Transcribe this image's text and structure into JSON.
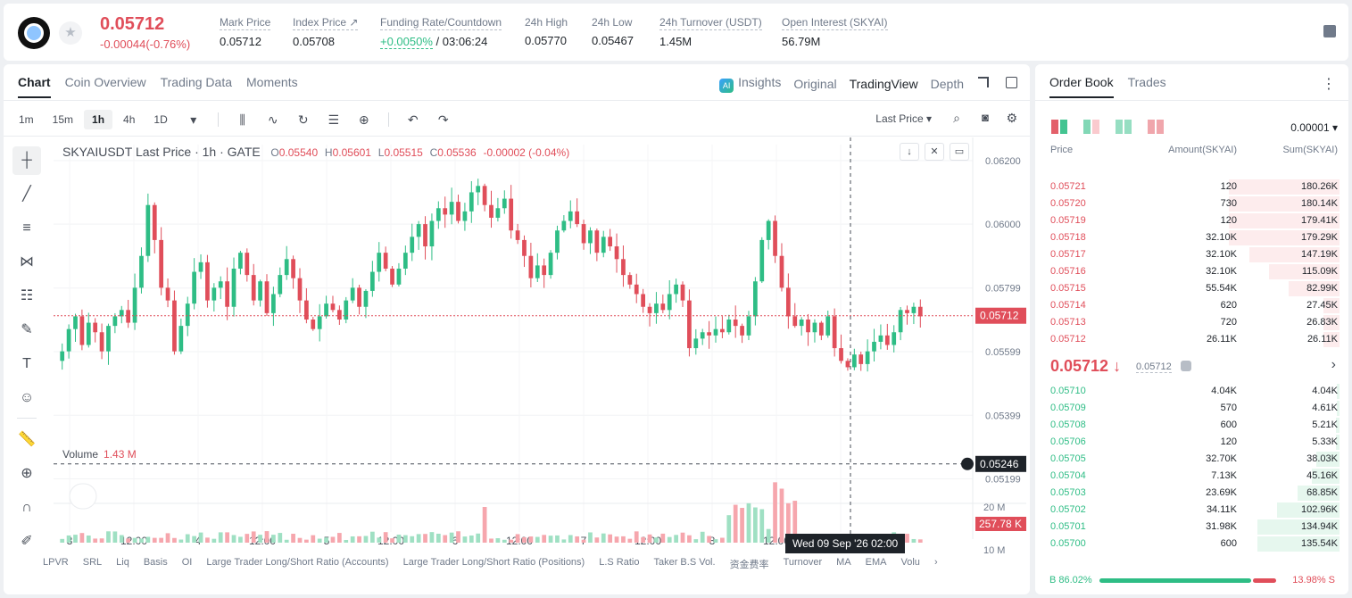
{
  "header": {
    "last_price": "0.05712",
    "change": "-0.00044(-0.76%)",
    "stats": [
      {
        "label": "Mark Price",
        "value": "0.05712"
      },
      {
        "label": "Index Price ↗",
        "value": "0.05708"
      },
      {
        "label": "Funding Rate/Countdown",
        "value_green": "+0.0050%",
        "value": " / 03:06:24"
      },
      {
        "label": "24h High",
        "value": "0.05770"
      },
      {
        "label": "24h Low",
        "value": "0.05467"
      },
      {
        "label": "24h Turnover (USDT)",
        "value": "1.45M"
      },
      {
        "label": "Open Interest (SKYAI)",
        "value": "56.79M"
      }
    ]
  },
  "chart_tabs": {
    "items": [
      "Chart",
      "Coin Overview",
      "Trading Data",
      "Moments"
    ],
    "active": "Chart"
  },
  "view_tabs": {
    "insights": "Insights",
    "original": "Original",
    "tradingview": "TradingView",
    "depth": "Depth",
    "ai_badge": "AI"
  },
  "timeframes": [
    "1m",
    "15m",
    "1h",
    "4h",
    "1D"
  ],
  "active_timeframe": "1h",
  "last_price_select": "Last Price",
  "legend": {
    "symbol": "SKYAIUSDT Last Price · 1h · GATE",
    "o_label": "O",
    "o": "0.05540",
    "h_label": "H",
    "h": "0.05601",
    "l_label": "L",
    "l": "0.05515",
    "c_label": "C",
    "c": "0.05536",
    "chg": "-0.00002 (-0.04%)"
  },
  "volume_legend": {
    "label": "Volume",
    "value": "1.43 M"
  },
  "crosshair_time": "Wed 09 Sep '26   02:00",
  "indicators": [
    "LPVR",
    "SRL",
    "Liq",
    "Basis",
    "OI",
    "Large Trader Long/Short Ratio (Accounts)",
    "Large Trader Long/Short Ratio (Positions)",
    "L.S Ratio",
    "Taker B.S Vol.",
    "资金费率",
    "Turnover",
    "MA",
    "EMA",
    "Volu"
  ],
  "chart_data": {
    "type": "candlestick",
    "y_ticks": [
      "0.06200",
      "0.06000",
      "0.05799",
      "0.05599",
      "0.05399",
      "0.05199"
    ],
    "vol_ticks": [
      "20 M",
      "10 M"
    ],
    "x_ticks": [
      "3",
      "12:00",
      "4",
      "12:00",
      "5",
      "12:00",
      "6",
      "12:00",
      "7",
      "12:00",
      "8",
      "12:00",
      "10"
    ],
    "ylim": [
      0.0515,
      0.0625
    ],
    "price_tag": "0.05712",
    "cross_tag": "0.05246",
    "vol_tag": "257.78 K",
    "last_price": 0.05712,
    "cross_price": 0.05246,
    "closes": [
      0.056,
      0.0567,
      0.0571,
      0.0562,
      0.0569,
      0.0566,
      0.056,
      0.0568,
      0.0571,
      0.0573,
      0.0569,
      0.058,
      0.059,
      0.0606,
      0.0595,
      0.058,
      0.0576,
      0.056,
      0.0568,
      0.0575,
      0.0585,
      0.0588,
      0.0576,
      0.058,
      0.0582,
      0.0574,
      0.0586,
      0.0591,
      0.0584,
      0.0576,
      0.0582,
      0.0572,
      0.0578,
      0.0584,
      0.0589,
      0.0583,
      0.0576,
      0.057,
      0.0567,
      0.0571,
      0.0575,
      0.0573,
      0.057,
      0.0576,
      0.058,
      0.0574,
      0.0579,
      0.0585,
      0.0591,
      0.0586,
      0.0581,
      0.0586,
      0.0591,
      0.0596,
      0.06,
      0.0593,
      0.0601,
      0.0605,
      0.0603,
      0.0607,
      0.0601,
      0.0604,
      0.061,
      0.0612,
      0.0606,
      0.0602,
      0.0605,
      0.0608,
      0.0598,
      0.0595,
      0.059,
      0.0583,
      0.0587,
      0.0584,
      0.0591,
      0.0598,
      0.0601,
      0.0604,
      0.06,
      0.0594,
      0.0598,
      0.0591,
      0.0596,
      0.0593,
      0.0589,
      0.0584,
      0.0581,
      0.0578,
      0.0574,
      0.0572,
      0.0575,
      0.0573,
      0.0578,
      0.0581,
      0.0576,
      0.0561,
      0.0564,
      0.0566,
      0.0565,
      0.0567,
      0.0566,
      0.057,
      0.0568,
      0.0565,
      0.0571,
      0.0582,
      0.0595,
      0.0601,
      0.059,
      0.058,
      0.0571,
      0.0568,
      0.057,
      0.0566,
      0.0569,
      0.0565,
      0.0571,
      0.0561,
      0.0557,
      0.0555,
      0.0559,
      0.0556,
      0.056,
      0.0563,
      0.0565,
      0.0562,
      0.0566,
      0.0573,
      0.0572,
      0.0574,
      0.0571
    ]
  },
  "orderbook": {
    "tabs": [
      "Order Book",
      "Trades"
    ],
    "precision": "0.00001",
    "headers": {
      "price": "Price",
      "amount": "Amount(SKYAI)",
      "sum": "Sum(SKYAI)"
    },
    "asks": [
      {
        "price": "0.05721",
        "amount": "120",
        "sum": "180.26K",
        "fill": 0.95
      },
      {
        "price": "0.05720",
        "amount": "730",
        "sum": "180.14K",
        "fill": 0.95
      },
      {
        "price": "0.05719",
        "amount": "120",
        "sum": "179.41K",
        "fill": 0.95
      },
      {
        "price": "0.05718",
        "amount": "32.10K",
        "sum": "179.29K",
        "fill": 0.95
      },
      {
        "price": "0.05717",
        "amount": "32.10K",
        "sum": "147.19K",
        "fill": 0.78
      },
      {
        "price": "0.05716",
        "amount": "32.10K",
        "sum": "115.09K",
        "fill": 0.61
      },
      {
        "price": "0.05715",
        "amount": "55.54K",
        "sum": "82.99K",
        "fill": 0.44
      },
      {
        "price": "0.05714",
        "amount": "620",
        "sum": "27.45K",
        "fill": 0.14
      },
      {
        "price": "0.05713",
        "amount": "720",
        "sum": "26.83K",
        "fill": 0.14
      },
      {
        "price": "0.05712",
        "amount": "26.11K",
        "sum": "26.11K",
        "fill": 0.14
      }
    ],
    "mid_price": "0.05712 ↓",
    "mark_price": "0.05712",
    "bids": [
      {
        "price": "0.05710",
        "amount": "4.04K",
        "sum": "4.04K",
        "fill": 0.02
      },
      {
        "price": "0.05709",
        "amount": "570",
        "sum": "4.61K",
        "fill": 0.02
      },
      {
        "price": "0.05708",
        "amount": "600",
        "sum": "5.21K",
        "fill": 0.03
      },
      {
        "price": "0.05706",
        "amount": "120",
        "sum": "5.33K",
        "fill": 0.03
      },
      {
        "price": "0.05705",
        "amount": "32.70K",
        "sum": "38.03K",
        "fill": 0.2
      },
      {
        "price": "0.05704",
        "amount": "7.13K",
        "sum": "45.16K",
        "fill": 0.24
      },
      {
        "price": "0.05703",
        "amount": "23.69K",
        "sum": "68.85K",
        "fill": 0.36
      },
      {
        "price": "0.05702",
        "amount": "34.11K",
        "sum": "102.96K",
        "fill": 0.54
      },
      {
        "price": "0.05701",
        "amount": "31.98K",
        "sum": "134.94K",
        "fill": 0.71
      },
      {
        "price": "0.05700",
        "amount": "600",
        "sum": "135.54K",
        "fill": 0.71
      }
    ],
    "buy_ratio": "B 86.02%",
    "sell_ratio": "13.98% S",
    "buy_fraction": 0.8602
  },
  "colors": {
    "up": "#2ebd85",
    "down": "#e04e5a",
    "text": "#1e2329"
  }
}
